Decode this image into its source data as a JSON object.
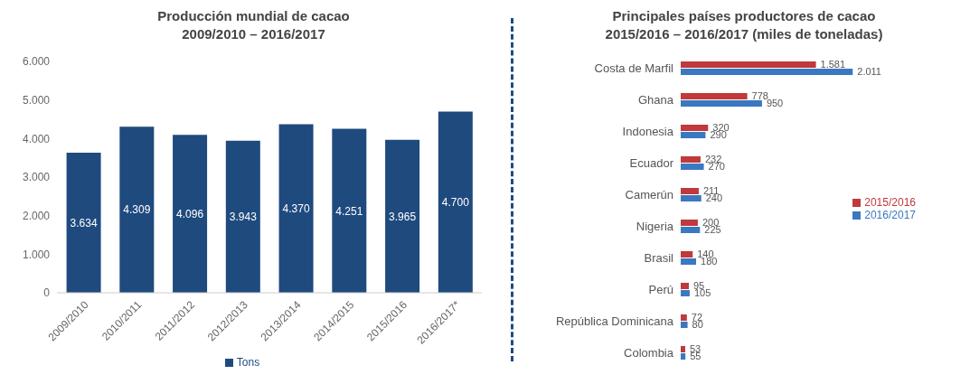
{
  "chart_data": [
    {
      "type": "bar",
      "title": "Producción mundial de cacao\n2009/2010 – 2016/2017",
      "categories": [
        "2009/2010",
        "2010/2011",
        "2011/2012",
        "2012/2013",
        "2013/2014",
        "2014/2015",
        "2015/2016",
        "2016/2017*"
      ],
      "series": [
        {
          "name": "Tons",
          "color": "#1f4a7e",
          "values": [
            3634,
            4309,
            4096,
            3943,
            4370,
            4251,
            3965,
            4700
          ],
          "value_labels": [
            "3.634",
            "4.309",
            "4.096",
            "3.943",
            "4.370",
            "4.251",
            "3.965",
            "4.700"
          ]
        }
      ],
      "ylim": [
        0,
        6000
      ],
      "yticks": [
        0,
        {
          "value": 1000,
          "label": "1.000"
        },
        {
          "value": 2000,
          "label": "2.000"
        },
        {
          "value": 3000,
          "label": "3.000"
        },
        {
          "value": 4000,
          "label": "4.000"
        },
        {
          "value": 5000,
          "label": "5.000"
        },
        {
          "value": 6000,
          "label": "6.000"
        }
      ],
      "grid": false,
      "legend": "bottom"
    },
    {
      "type": "bar",
      "orientation": "horizontal",
      "title": "Principales países productores de cacao\n2015/2016 – 2016/2017 (miles de toneladas)",
      "categories": [
        "Costa de Marfil",
        "Ghana",
        "Indonesia",
        "Ecuador",
        "Camerún",
        "Nigeria",
        "Brasil",
        "Perú",
        "República Dominicana",
        "Colombia"
      ],
      "series": [
        {
          "name": "2015/2016",
          "color": "#c0393b",
          "values": [
            1581,
            778,
            320,
            232,
            211,
            200,
            140,
            95,
            72,
            53
          ],
          "value_labels": [
            "1.581",
            "778",
            "320",
            "232",
            "211",
            "200",
            "140",
            "95",
            "72",
            "53"
          ]
        },
        {
          "name": "2016/2017",
          "color": "#3a78c0",
          "values": [
            2011,
            950,
            290,
            270,
            240,
            225,
            180,
            105,
            80,
            55
          ],
          "value_labels": [
            "2.011",
            "950",
            "290",
            "270",
            "240",
            "225",
            "180",
            "105",
            "80",
            "55"
          ]
        }
      ],
      "grid": false,
      "legend": "right"
    }
  ]
}
